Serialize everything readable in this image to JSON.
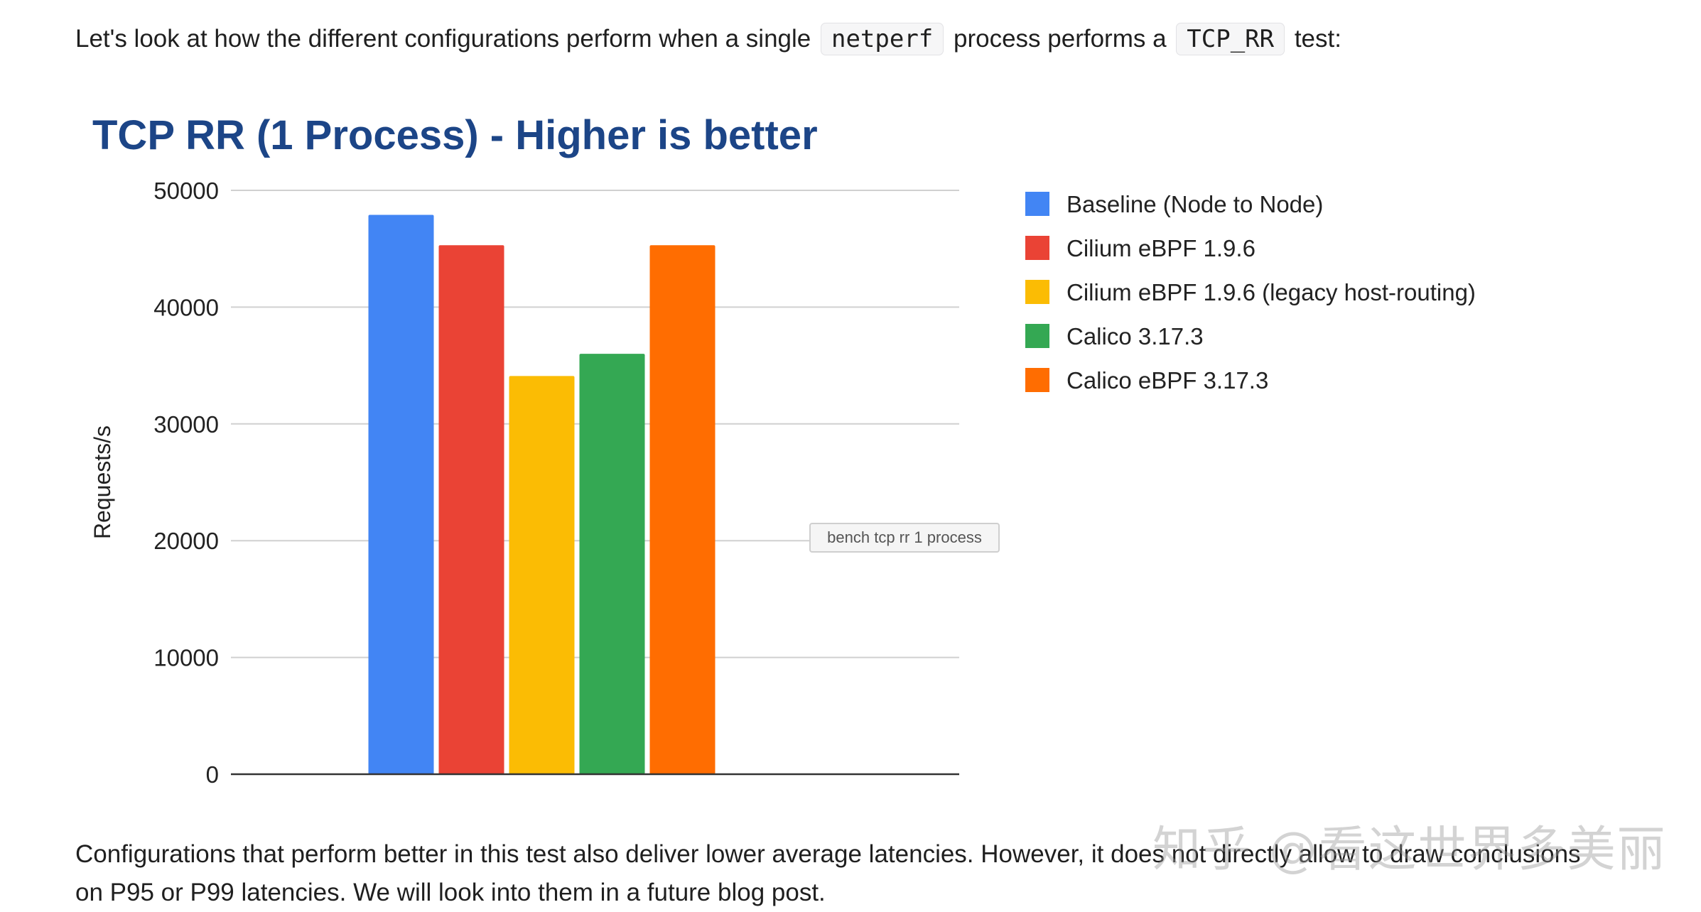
{
  "intro": {
    "before": "Let's look at how the different configurations perform when a single ",
    "code1": "netperf",
    "middle": " process performs a ",
    "code2": "TCP_RR",
    "after": " test:"
  },
  "outro": {
    "text": "Configurations that perform better in this test also deliver lower average latencies. However, it does not directly allow to draw conclusions on P95 or P99 latencies. We will look into them in a future blog post."
  },
  "watermark": "知乎 @看这世界多美丽",
  "chart_data": {
    "type": "bar",
    "title": "TCP RR (1 Process) - Higher is better",
    "xlabel": "",
    "ylabel": "Requests/s",
    "ylim": [
      0,
      50000
    ],
    "yticks": [
      0,
      10000,
      20000,
      30000,
      40000,
      50000
    ],
    "grid": true,
    "legend_position": "right",
    "tooltip": "bench tcp rr 1 process",
    "categories": [
      "bench tcp rr 1 process"
    ],
    "series": [
      {
        "name": "Baseline (Node to Node)",
        "color": "#4285f4",
        "values": [
          47900
        ]
      },
      {
        "name": "Cilium eBPF 1.9.6",
        "color": "#ea4335",
        "values": [
          45300
        ]
      },
      {
        "name": "Cilium eBPF 1.9.6 (legacy host-routing)",
        "color": "#fbbc04",
        "values": [
          34100
        ]
      },
      {
        "name": "Calico 3.17.3",
        "color": "#34a853",
        "values": [
          36000
        ]
      },
      {
        "name": "Calico eBPF 3.17.3",
        "color": "#ff6d01",
        "values": [
          45300
        ]
      }
    ]
  }
}
